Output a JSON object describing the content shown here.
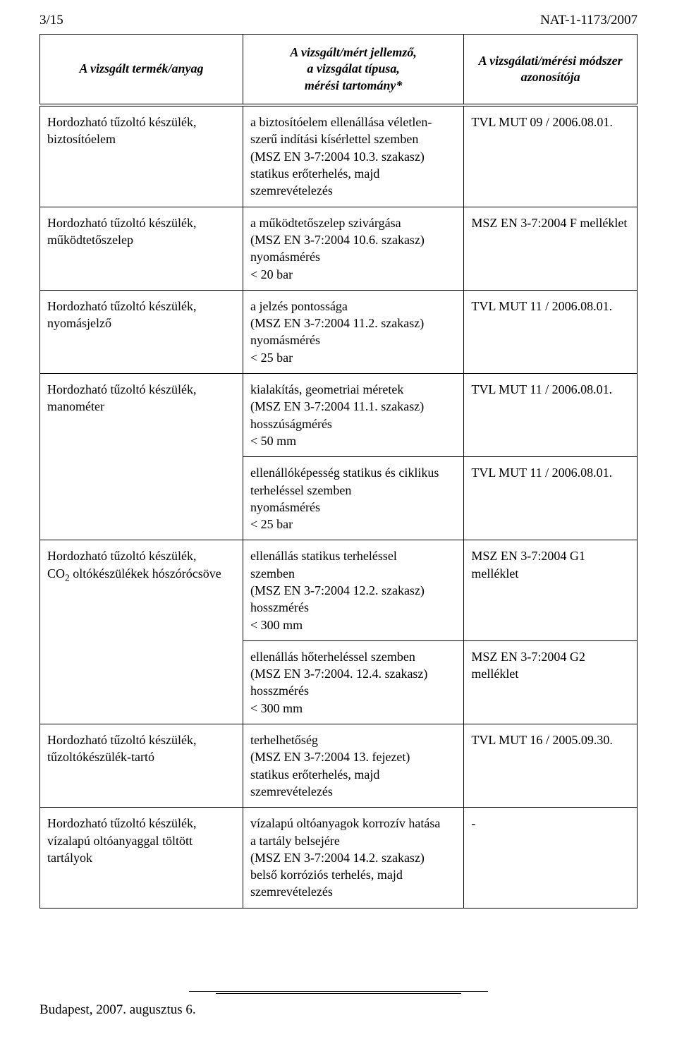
{
  "page": {
    "page_number": "3/15",
    "doc_ref": "NAT-1-1173/2007",
    "footer": "Budapest, 2007. augusztus 6."
  },
  "headers": {
    "col1": "A vizsgált termék/anyag",
    "col2_l1": "A vizsgált/mért jellemző,",
    "col2_l2": "a vizsgálat típusa,",
    "col2_l3": "mérési tartomány*",
    "col3_l1": "A vizsgálati/mérési módszer",
    "col3_l2": "azonosítója"
  },
  "rows": [
    {
      "product_l1": "Hordozható tűzoltó készülék,",
      "product_l2": "biztosítóelem",
      "char_l1": "a biztosítóelem ellenállása véletlen-",
      "char_l2": "szerű indítási kísérlettel szemben",
      "char_l3": "(MSZ EN 3-7:2004 10.3. szakasz)",
      "char_l4": "statikus erőterhelés, majd",
      "char_l5": "szemrevételezés",
      "method": "TVL MUT 09 / 2006.08.01."
    },
    {
      "product_l1": "Hordozható tűzoltó készülék,",
      "product_l2": "működtetőszelep",
      "char_l1": "a működtetőszelep szivárgása",
      "char_l2": "(MSZ EN 3-7:2004 10.6. szakasz)",
      "char_l3": "nyomásmérés",
      "char_l4": "< 20 bar",
      "method": "MSZ EN 3-7:2004 F melléklet"
    },
    {
      "product_l1": "Hordozható tűzoltó készülék,",
      "product_l2": "nyomásjelző",
      "char_l1": "a jelzés pontossága",
      "char_l2": "(MSZ EN 3-7:2004 11.2. szakasz)",
      "char_l3": "nyomásmérés",
      "char_l4": "< 25 bar",
      "method": "TVL MUT 11 / 2006.08.01."
    },
    {
      "product_l1": "Hordozható tűzoltó készülék,",
      "product_l2": "manométer",
      "char_l1": "kialakítás, geometriai méretek",
      "char_l2": "(MSZ EN 3-7:2004 11.1. szakasz)",
      "char_l3": "hosszúságmérés",
      "char_l4": "< 50 mm",
      "method": "TVL MUT 11 / 2006.08.01."
    },
    {
      "char_l1": "ellenállóképesség statikus és ciklikus",
      "char_l2": "terheléssel szemben",
      "char_l3": "nyomásmérés",
      "char_l4": "< 25 bar",
      "method": "TVL MUT 11 / 2006.08.01."
    },
    {
      "product_l1": "Hordozható tűzoltó készülék,",
      "product_html": "CO<span class='sub2'>2</span> oltókészülékek hószórócsöve",
      "char_l1": "ellenállás statikus terheléssel",
      "char_l2": "szemben",
      "char_l3": "(MSZ EN 3-7:2004 12.2. szakasz)",
      "char_l4": "hosszmérés",
      "char_l5": "< 300 mm",
      "method": "MSZ EN 3-7:2004 G1 melléklet"
    },
    {
      "char_l1": "ellenállás hőterheléssel szemben",
      "char_l2": "(MSZ EN 3-7:2004. 12.4. szakasz)",
      "char_l3": "hosszmérés",
      "char_l4": "< 300 mm",
      "method": "MSZ EN 3-7:2004 G2 melléklet"
    },
    {
      "product_l1": "Hordozható tűzoltó készülék,",
      "product_l2": "tűzoltókészülék-tartó",
      "char_l1": "terhelhetőség",
      "char_l2": "(MSZ EN 3-7:2004 13. fejezet)",
      "char_l3": "statikus erőterhelés, majd",
      "char_l4": "szemrevételezés",
      "method": "TVL MUT 16 / 2005.09.30."
    },
    {
      "product_l1": "Hordozható tűzoltó készülék,",
      "product_l2": "vízalapú oltóanyaggal töltött tartályok",
      "char_l1": "vízalapú oltóanyagok korrozív hatása",
      "char_l2": "a tartály belsejére",
      "char_l3": "(MSZ EN 3-7:2004 14.2. szakasz)",
      "char_l4": "belső korróziós terhelés, majd",
      "char_l5": "szemrevételezés",
      "method": "-"
    }
  ]
}
